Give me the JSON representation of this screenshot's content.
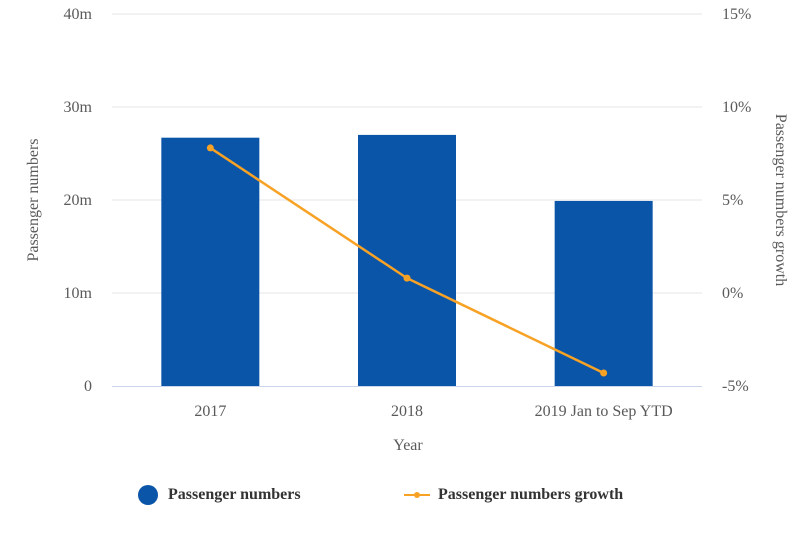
{
  "chart_data": {
    "type": "bar+line",
    "categories": [
      "2017",
      "2018",
      "2019 Jan to Sep YTD"
    ],
    "series": [
      {
        "name": "Passenger numbers",
        "type": "bar",
        "axis": "left",
        "unit": "m",
        "values": [
          26.7,
          27.0,
          19.9
        ]
      },
      {
        "name": "Passenger numbers growth",
        "type": "line",
        "axis": "right",
        "unit": "%",
        "values": [
          7.8,
          0.8,
          -4.3
        ]
      }
    ],
    "xlabel": "Year",
    "ylabel_left": "Passenger numbers",
    "ylabel_right": "Passenger numbers growth",
    "ylim_left": [
      0,
      40
    ],
    "ylim_right": [
      -5,
      15
    ],
    "yticks_left": [
      "0",
      "10m",
      "20m",
      "30m",
      "40m"
    ],
    "yticks_right": [
      "-5%",
      "0%",
      "5%",
      "10%",
      "15%"
    ],
    "grid": true,
    "legend_position": "bottom",
    "colors": {
      "bar": "#0a55a8",
      "line": "#f7a225",
      "grid": "#e6e6e6",
      "axis": "#ccd6eb"
    }
  }
}
